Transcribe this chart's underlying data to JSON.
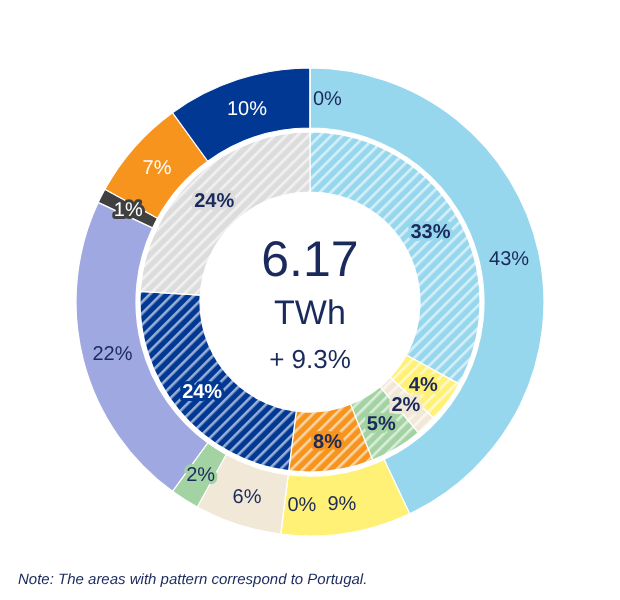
{
  "chart_data": [
    {
      "type": "donut",
      "title": "6.17",
      "subtitle": "TWh",
      "annotations": [
        "+ 9.3%",
        "Note: The  areas with pattern correspond  to Portugal."
      ],
      "categories": [
        null,
        null,
        null,
        null,
        null,
        null,
        null,
        null,
        null,
        null
      ],
      "values": [
        43,
        9,
        0,
        6,
        2,
        22,
        1,
        7,
        10,
        0
      ],
      "value_labels": [
        "43%",
        "9%",
        "0%",
        "6%",
        "2%",
        "22%",
        "1%",
        "7%",
        "10%",
        "0%"
      ],
      "colors": [
        "#97d7ee",
        "#fff176",
        "#f0c020",
        "#f2e8d8",
        "#a3d3a3",
        "#a0a8e2",
        "#404040",
        "#f7941d",
        "#003893",
        "#d0d0d0"
      ]
    },
    {
      "type": "donut",
      "categories": [
        null,
        null,
        null,
        null,
        null,
        null,
        null
      ],
      "values": [
        33,
        4,
        2,
        5,
        8,
        24,
        24
      ],
      "value_labels": [
        "33%",
        "4%",
        "2%",
        "5%",
        "8%",
        "24%",
        "24%"
      ],
      "colors": [
        "#97d7ee",
        "#fff176",
        "#f2e8d8",
        "#a3d3a3",
        "#f7941d",
        "#003893",
        "#dcdcdc"
      ]
    }
  ]
}
